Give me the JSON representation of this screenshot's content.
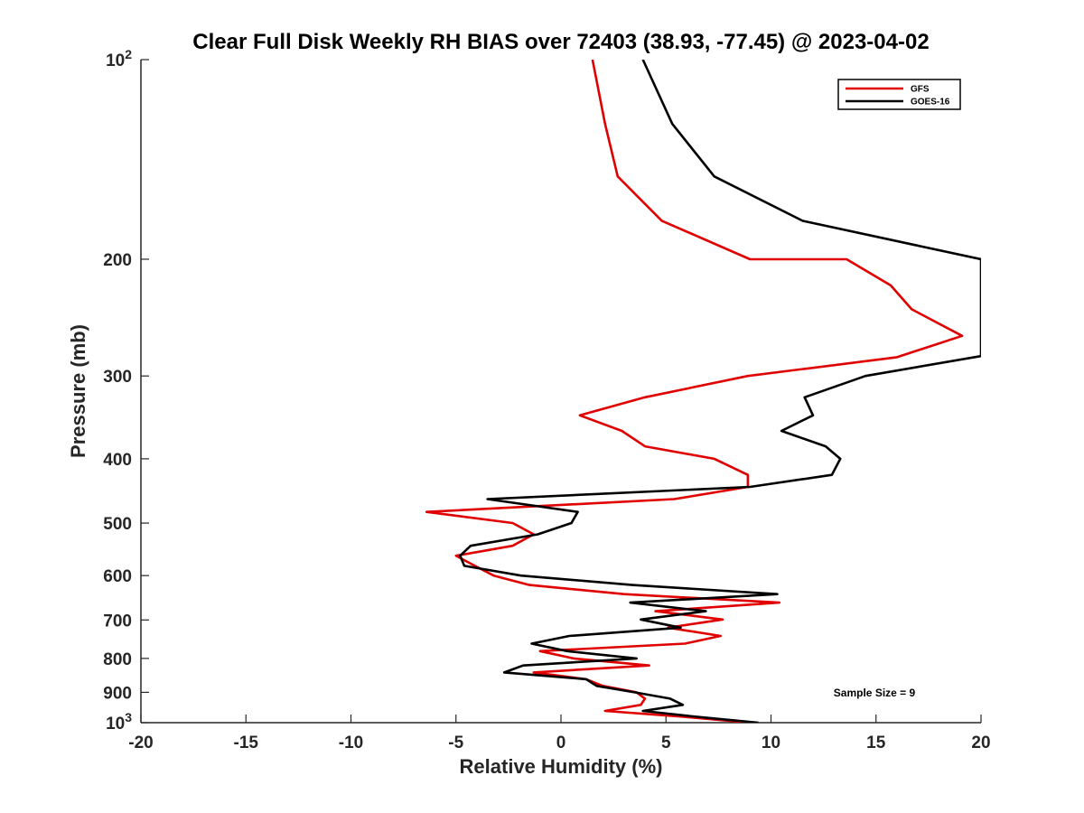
{
  "chart_data": {
    "type": "line",
    "title": "Clear Full Disk Weekly RH BIAS over 72403 (38.93, -77.45) @ 2023-04-02",
    "xlabel": "Relative Humidity (%)",
    "ylabel": "Pressure (mb)",
    "xlim": [
      -20,
      20
    ],
    "ylim": [
      100,
      1000
    ],
    "y_scale": "log",
    "y_reversed": true,
    "grid": false,
    "legend_position": "top-right",
    "x_ticks": [
      -20,
      -15,
      -10,
      -5,
      0,
      5,
      10,
      15,
      20
    ],
    "x_tick_labels": [
      "-20",
      "-15",
      "-10",
      "-5",
      "0",
      "5",
      "10",
      "15",
      "20"
    ],
    "y_ticks": [
      100,
      200,
      300,
      400,
      500,
      600,
      700,
      800,
      900,
      1000
    ],
    "y_tick_labels": [
      {
        "base": "10",
        "exp": "2"
      },
      {
        "base": "200"
      },
      {
        "base": "300"
      },
      {
        "base": "400"
      },
      {
        "base": "500"
      },
      {
        "base": "600"
      },
      {
        "base": "700"
      },
      {
        "base": "800"
      },
      {
        "base": "900"
      },
      {
        "base": "10",
        "exp": "3"
      }
    ],
    "annotation": "Sample Size = 9",
    "series": [
      {
        "name": "GFS",
        "color": "#e00000",
        "points": [
          [
            1.5,
            100
          ],
          [
            2.1,
            125
          ],
          [
            2.7,
            150
          ],
          [
            4.8,
            175
          ],
          [
            9.0,
            200
          ],
          [
            13.6,
            200
          ],
          [
            15.7,
            219
          ],
          [
            16.7,
            238
          ],
          [
            19.1,
            261
          ],
          [
            16.0,
            281
          ],
          [
            8.9,
            300
          ],
          [
            4.0,
            323
          ],
          [
            0.9,
            344
          ],
          [
            2.9,
            363
          ],
          [
            4.0,
            383
          ],
          [
            7.3,
            400
          ],
          [
            8.9,
            423
          ],
          [
            8.9,
            441
          ],
          [
            5.4,
            460
          ],
          [
            -6.4,
            481
          ],
          [
            -2.3,
            500
          ],
          [
            -1.3,
            520
          ],
          [
            -2.3,
            541
          ],
          [
            -5.0,
            560
          ],
          [
            -4.1,
            580
          ],
          [
            -3.2,
            600
          ],
          [
            -1.5,
            620
          ],
          [
            3.0,
            640
          ],
          [
            10.4,
            659
          ],
          [
            4.5,
            679
          ],
          [
            7.7,
            699
          ],
          [
            5.1,
            719
          ],
          [
            7.6,
            740
          ],
          [
            5.9,
            760
          ],
          [
            -1.0,
            780
          ],
          [
            0.6,
            800
          ],
          [
            4.2,
            820
          ],
          [
            -1.3,
            840
          ],
          [
            1.2,
            860
          ],
          [
            2.0,
            880
          ],
          [
            3.6,
            900
          ],
          [
            4.0,
            920
          ],
          [
            3.8,
            940
          ],
          [
            2.1,
            960
          ],
          [
            5.9,
            980
          ],
          [
            9.0,
            1000
          ]
        ]
      },
      {
        "name": "GOES-16",
        "color": "#000000",
        "points": [
          [
            3.9,
            100
          ],
          [
            5.3,
            125
          ],
          [
            7.3,
            150
          ],
          [
            11.5,
            175
          ],
          [
            20.0,
            200
          ],
          [
            20.0,
            280
          ],
          [
            14.5,
            300
          ],
          [
            11.6,
            323
          ],
          [
            12.0,
            344
          ],
          [
            10.5,
            363
          ],
          [
            12.6,
            383
          ],
          [
            13.3,
            400
          ],
          [
            12.9,
            423
          ],
          [
            9.0,
            441
          ],
          [
            -3.5,
            460
          ],
          [
            0.8,
            481
          ],
          [
            0.5,
            500
          ],
          [
            -1.1,
            520
          ],
          [
            -4.3,
            541
          ],
          [
            -4.8,
            560
          ],
          [
            -4.6,
            580
          ],
          [
            -1.9,
            600
          ],
          [
            3.4,
            620
          ],
          [
            10.3,
            640
          ],
          [
            3.3,
            659
          ],
          [
            6.9,
            679
          ],
          [
            3.8,
            699
          ],
          [
            5.7,
            719
          ],
          [
            0.4,
            740
          ],
          [
            -1.4,
            760
          ],
          [
            0.3,
            780
          ],
          [
            3.6,
            800
          ],
          [
            -1.8,
            820
          ],
          [
            -2.7,
            840
          ],
          [
            1.2,
            860
          ],
          [
            1.7,
            880
          ],
          [
            3.5,
            900
          ],
          [
            5.2,
            920
          ],
          [
            5.8,
            940
          ],
          [
            3.9,
            960
          ],
          [
            6.5,
            980
          ],
          [
            9.4,
            1000
          ]
        ]
      }
    ]
  }
}
